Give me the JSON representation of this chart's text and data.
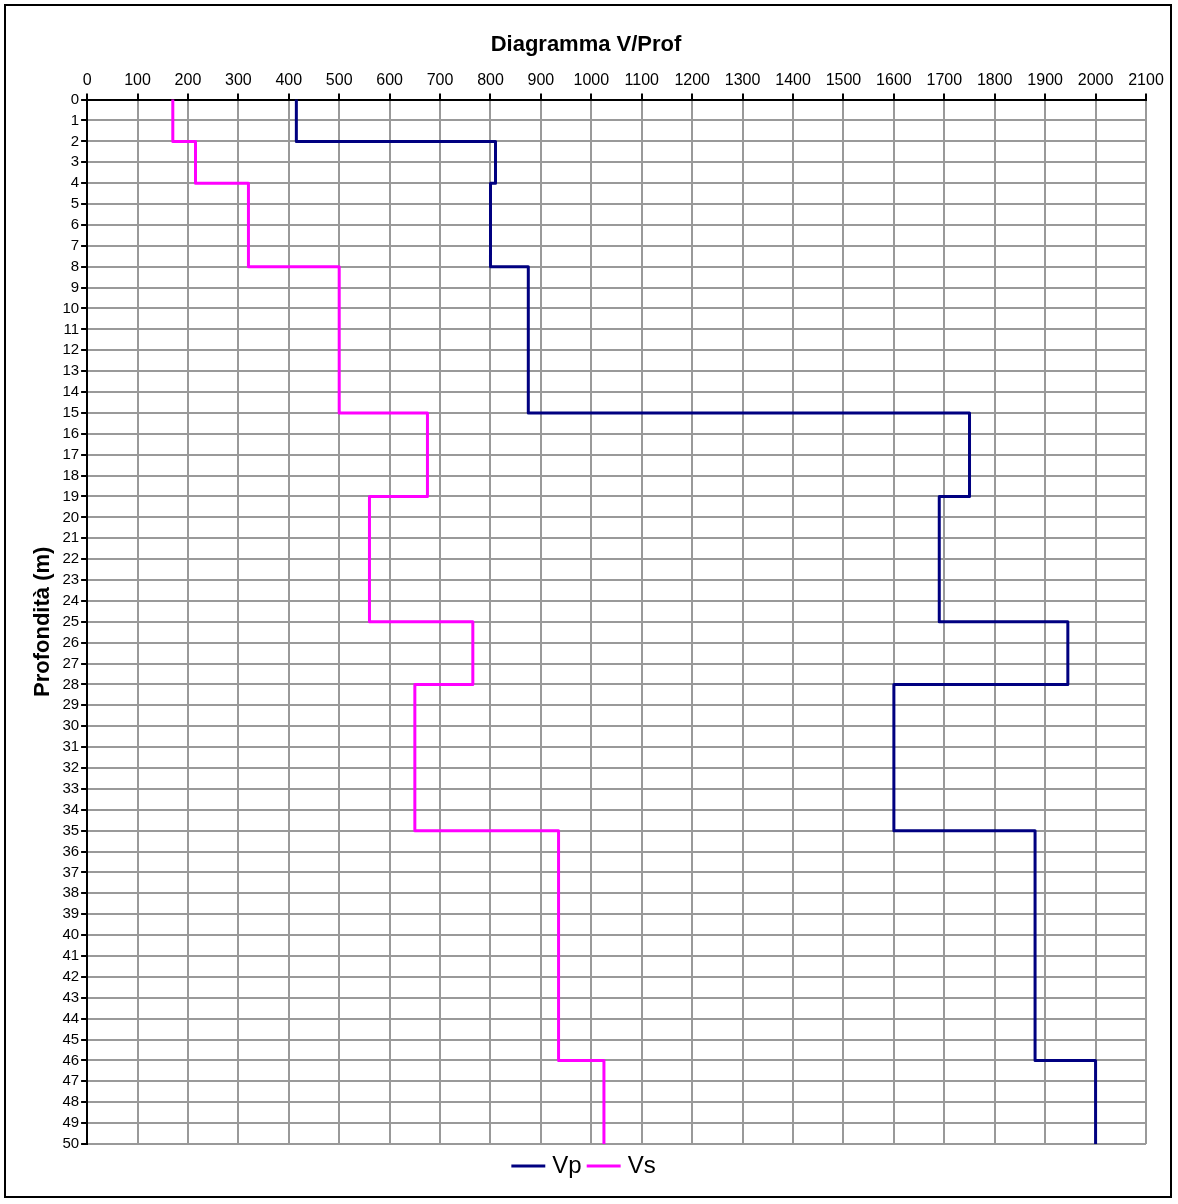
{
  "chart_data": {
    "type": "line",
    "title": "Diagramma V/Prof",
    "ylabel": "Profondità (m)",
    "xlim": [
      0,
      2100
    ],
    "xticks": [
      0,
      100,
      200,
      300,
      400,
      500,
      600,
      700,
      800,
      900,
      1000,
      1100,
      1200,
      1300,
      1400,
      1500,
      1600,
      1700,
      1800,
      1900,
      2000,
      2100
    ],
    "ylim": [
      50,
      0
    ],
    "yticks": [
      0,
      1,
      2,
      3,
      4,
      5,
      6,
      7,
      8,
      9,
      10,
      11,
      12,
      13,
      14,
      15,
      16,
      17,
      18,
      19,
      20,
      21,
      22,
      23,
      24,
      25,
      26,
      27,
      28,
      29,
      30,
      31,
      32,
      33,
      34,
      35,
      36,
      37,
      38,
      39,
      40,
      41,
      42,
      43,
      44,
      45,
      46,
      47,
      48,
      49,
      50
    ],
    "grid": true,
    "legend": "bottom",
    "marker": "none",
    "line_style": "solid",
    "series": [
      {
        "name": "Vp",
        "color": "#000080",
        "x": [
          415,
          415,
          810,
          810,
          800,
          800,
          875,
          875,
          1750,
          1750,
          1690,
          1690,
          1945,
          1945,
          1600,
          1600,
          1880,
          1880,
          2000,
          2000
        ],
        "values": [
          0,
          2,
          2,
          4,
          4,
          8,
          8,
          15,
          15,
          19,
          19,
          25,
          25,
          28,
          28,
          35,
          35,
          46,
          46,
          50
        ]
      },
      {
        "name": "Vs",
        "color": "#ff00ff",
        "x": [
          170,
          170,
          215,
          215,
          320,
          320,
          500,
          500,
          675,
          675,
          560,
          560,
          765,
          765,
          650,
          650,
          935,
          935,
          1025,
          1025
        ],
        "values": [
          0,
          2,
          2,
          4,
          4,
          8,
          8,
          15,
          15,
          19,
          19,
          25,
          25,
          28,
          28,
          35,
          35,
          46,
          46,
          50
        ]
      }
    ]
  }
}
